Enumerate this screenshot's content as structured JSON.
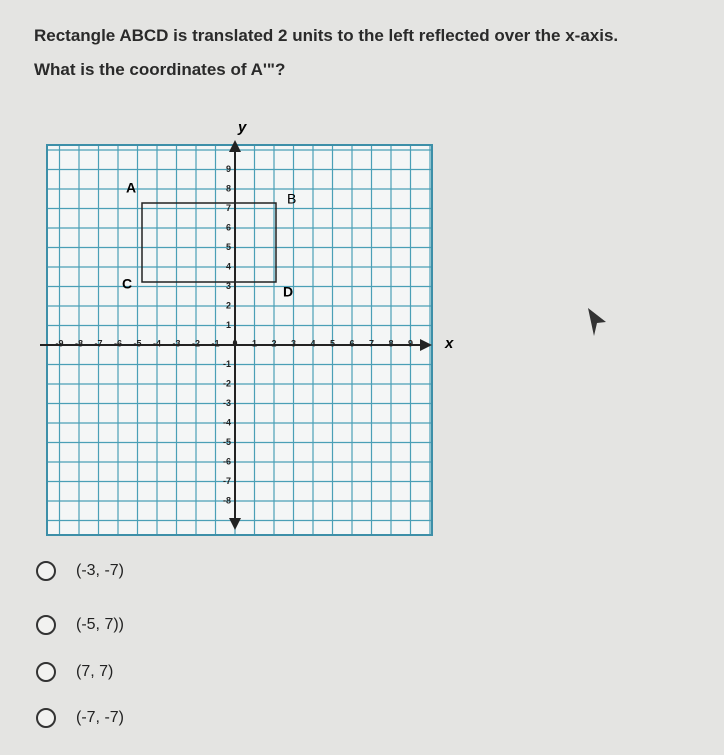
{
  "question": {
    "line1": "Rectangle ABCD is translated 2 units to the left reflected over the x-axis.",
    "line2": "What is the coordinates of A'\"?"
  },
  "graph": {
    "x_label": "x",
    "y_label": "y",
    "x_ticks": [
      -9,
      -8,
      -7,
      -6,
      -5,
      -4,
      -3,
      -2,
      -1,
      0,
      1,
      2,
      3,
      4,
      5,
      6,
      7,
      8,
      9
    ],
    "y_ticks": [
      9,
      8,
      7,
      6,
      5,
      4,
      3,
      2,
      1,
      -1,
      -2,
      -3,
      -4,
      -5,
      -6,
      -7,
      -8
    ],
    "points": [
      "A",
      "B",
      "C",
      "D"
    ]
  },
  "options": [
    "(-3, -7)",
    "(-5, 7))",
    "(7, 7)",
    "(-7, -7)"
  ]
}
